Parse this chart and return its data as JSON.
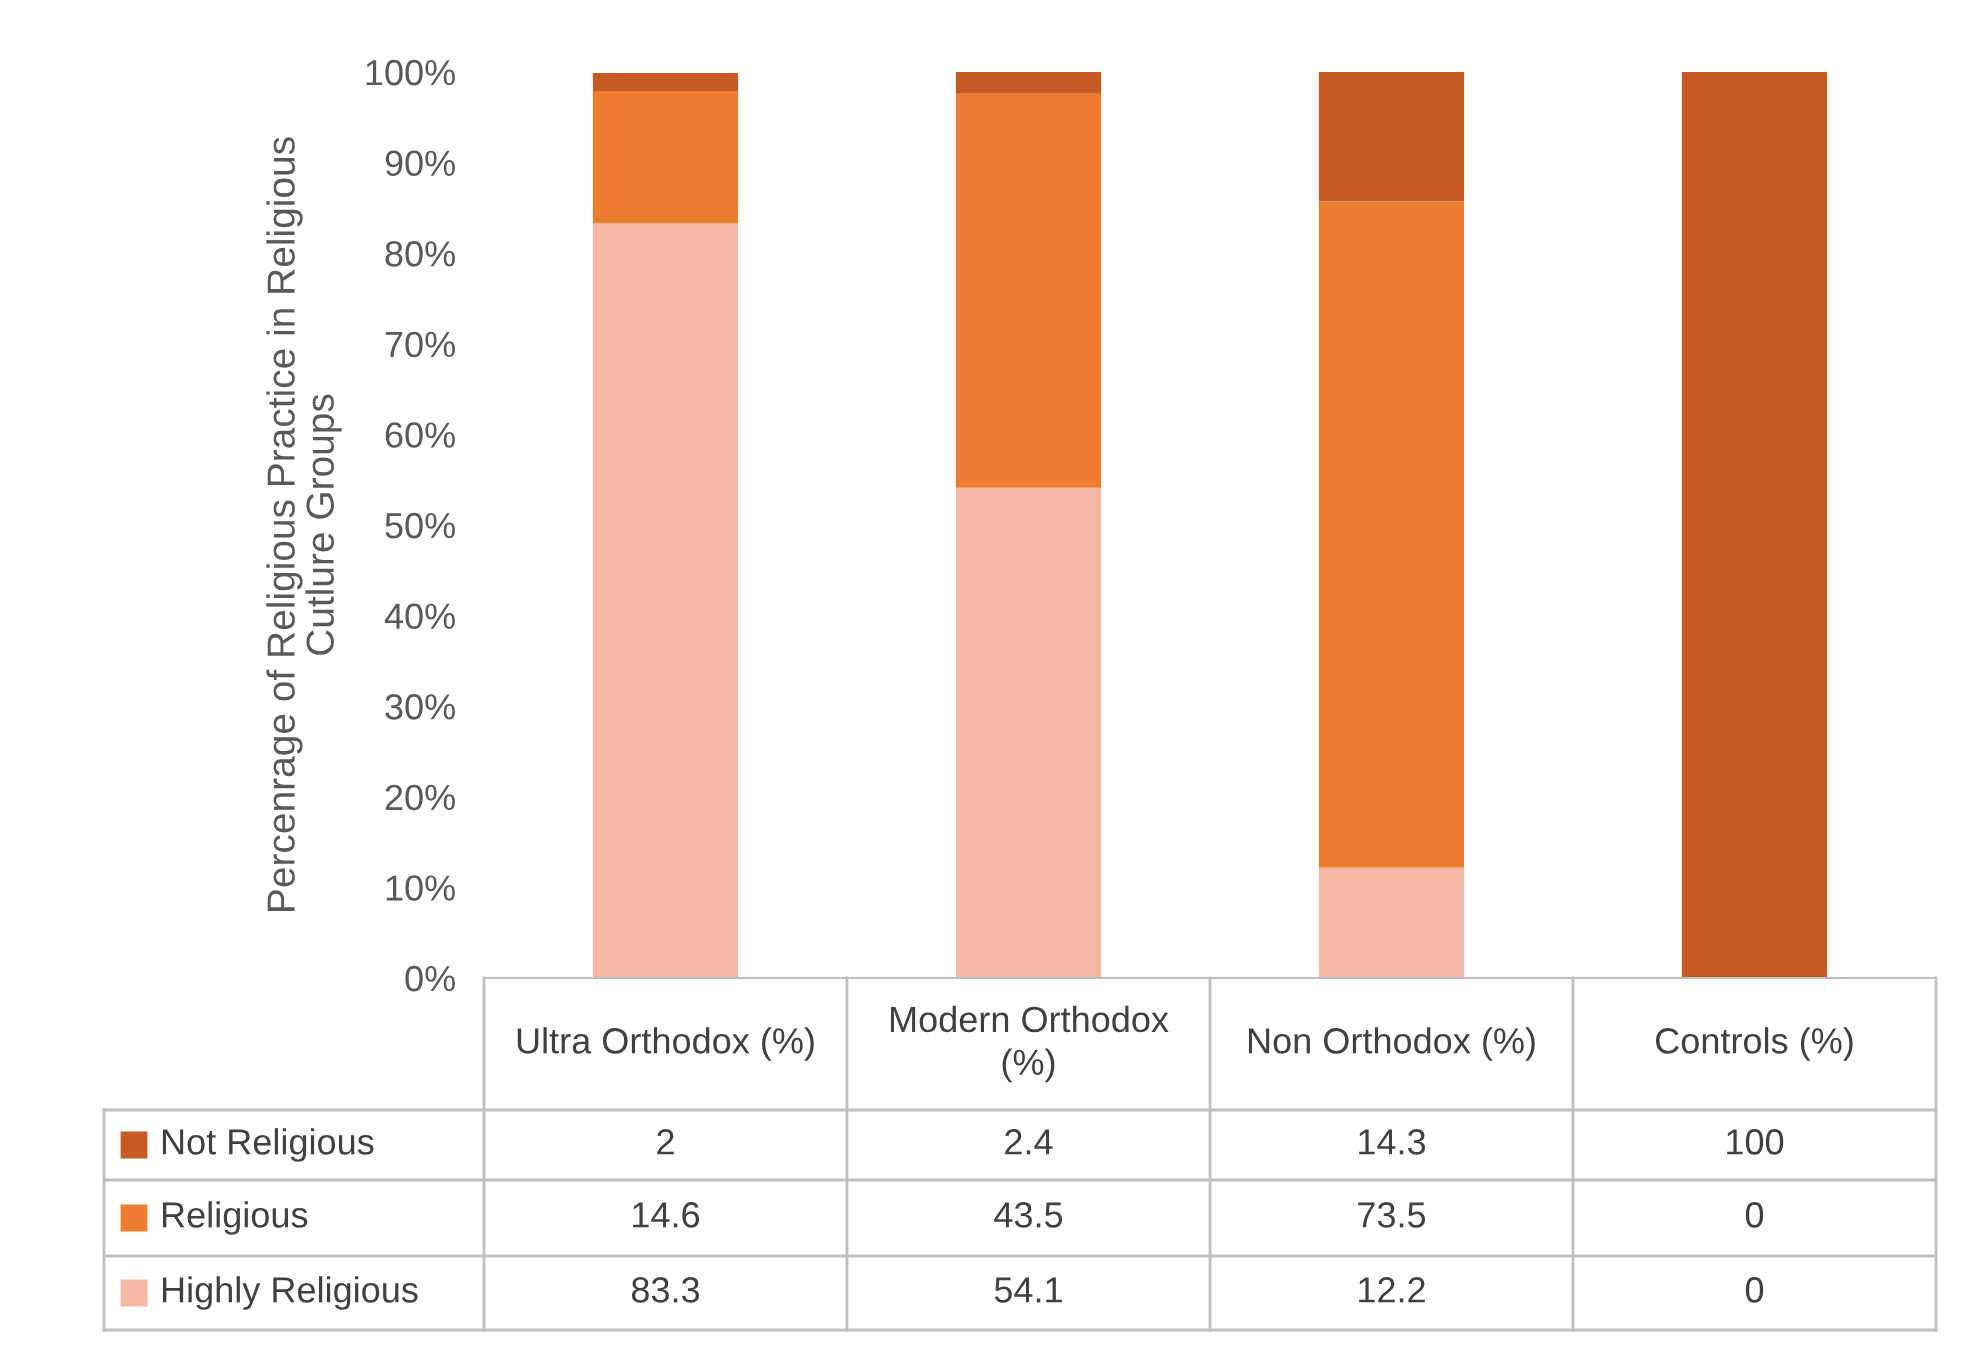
{
  "chart_data": {
    "type": "bar",
    "stacked": true,
    "ylabel": "Percenrage of Religious Practice in Religious Cutlure Groups",
    "categories": [
      "Ultra Orthodox (%)",
      "Modern Orthodox (%)",
      "Non Orthodox (%)",
      "Controls (%)"
    ],
    "series": [
      {
        "name": "Highly Religious",
        "color": "#f4b8a4",
        "values": [
          83.3,
          54.1,
          12.2,
          0
        ]
      },
      {
        "name": "Religious",
        "color": "#ed7d31",
        "values": [
          14.6,
          43.5,
          73.5,
          0
        ]
      },
      {
        "name": "Not Religious",
        "color": "#c55a22",
        "values": [
          2,
          2.4,
          14.3,
          100
        ]
      }
    ],
    "ylim": [
      0,
      100
    ],
    "yticks": [
      {
        "value": 0,
        "label": "0%"
      },
      {
        "value": 10,
        "label": "10%"
      },
      {
        "value": 20,
        "label": "20%"
      },
      {
        "value": 30,
        "label": "30%"
      },
      {
        "value": 40,
        "label": "40%"
      },
      {
        "value": 50,
        "label": "50%"
      },
      {
        "value": 60,
        "label": "60%"
      },
      {
        "value": 70,
        "label": "70%"
      },
      {
        "value": 80,
        "label": "80%"
      },
      {
        "value": 90,
        "label": "90%"
      },
      {
        "value": 100,
        "label": "100%"
      }
    ],
    "data_labels": true,
    "legend": "bottom",
    "grid": false
  }
}
